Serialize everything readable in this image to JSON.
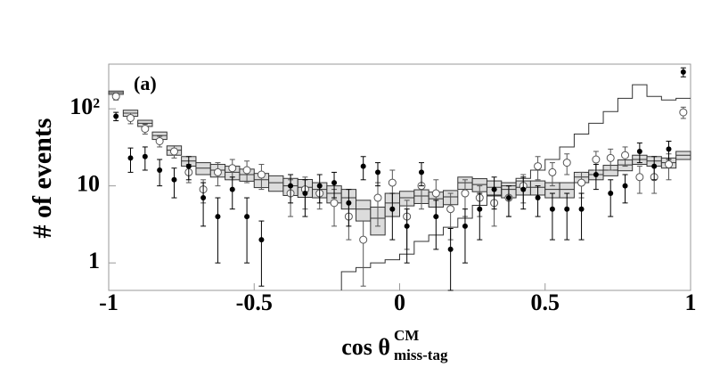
{
  "chart_data": {
    "type": "histogram",
    "panel_label": "(a)",
    "ylabel": "# of events",
    "xlabel": {
      "main": "cos θ",
      "sup": "CM",
      "sub": "miss-tag"
    },
    "log_y": true,
    "xlim": [
      -1,
      1
    ],
    "ylim": [
      0.44,
      380
    ],
    "xticks": [
      -1,
      -0.5,
      0,
      0.5,
      1
    ],
    "yticks": [
      1,
      10,
      {
        "value": 100,
        "label": "10²"
      }
    ],
    "bins": [
      -1,
      -0.95,
      -0.9,
      -0.85,
      -0.8,
      -0.75,
      -0.7,
      -0.65,
      -0.6,
      -0.55,
      -0.5,
      -0.45,
      -0.4,
      -0.35,
      -0.3,
      -0.25,
      -0.2,
      -0.15,
      -0.1,
      -0.05,
      0,
      0.05,
      0.1,
      0.15,
      0.2,
      0.25,
      0.3,
      0.35,
      0.4,
      0.45,
      0.5,
      0.55,
      0.6,
      0.65,
      0.7,
      0.75,
      0.8,
      0.85,
      0.9,
      0.95,
      1
    ],
    "series": [
      {
        "style": "box",
        "color": "#dcdcdc",
        "values": [
          162,
          88,
          65,
          45,
          29,
          21,
          17,
          16,
          15,
          14,
          12,
          11,
          10,
          9.6,
          9,
          8,
          7,
          5,
          3.8,
          6,
          7,
          7.4,
          6.8,
          7.2,
          11,
          10.4,
          9.6,
          9,
          9.6,
          9.6,
          9,
          9,
          13,
          14,
          16,
          18.7,
          22,
          21,
          20,
          25
        ],
        "errors": [
          8,
          8,
          6,
          5,
          4,
          3,
          3,
          3,
          3,
          2.5,
          2.5,
          2.5,
          2.5,
          2.5,
          2,
          2,
          2,
          1.5,
          1.5,
          2,
          1.5,
          1.5,
          1.5,
          1.5,
          2,
          2,
          2,
          2,
          2,
          2,
          2,
          2,
          2,
          2,
          2.5,
          3,
          3,
          3,
          3,
          3
        ]
      },
      {
        "style": "step",
        "color": "#333333",
        "values": [
          null,
          null,
          null,
          null,
          null,
          null,
          null,
          null,
          null,
          null,
          null,
          null,
          null,
          null,
          null,
          null,
          0.77,
          0.87,
          1.0,
          1.1,
          1.3,
          1.9,
          2.3,
          2.9,
          3.8,
          5.6,
          7.4,
          10,
          12.5,
          16,
          22,
          32,
          47,
          65,
          92,
          137,
          205,
          145,
          130,
          137
        ]
      },
      {
        "style": "open-circle",
        "color": "#555555",
        "values": [
          145,
          76,
          55,
          38,
          28,
          15,
          9,
          15,
          17,
          16,
          14,
          null,
          8,
          9,
          8,
          6,
          4,
          2,
          7,
          11,
          4,
          10,
          8,
          5,
          8,
          7,
          6,
          7,
          10,
          18,
          15,
          20,
          11,
          22,
          23,
          25,
          13,
          13,
          19,
          90
        ],
        "errors": [
          15,
          12,
          8,
          6,
          5,
          4,
          3,
          5,
          5,
          5,
          5,
          null,
          4,
          4,
          3,
          3,
          2,
          1.5,
          4,
          5,
          2.5,
          5,
          4,
          3,
          4,
          3,
          3,
          3,
          4,
          6,
          5,
          6,
          4,
          6,
          7,
          7,
          5,
          5,
          7,
          15
        ]
      },
      {
        "style": "filled-circle",
        "color": "#000000",
        "values": [
          80,
          23,
          24,
          16,
          12,
          18,
          7,
          4,
          9,
          4,
          2,
          null,
          10,
          8,
          10,
          11,
          6,
          18,
          15,
          5,
          3,
          15,
          4,
          1.5,
          3,
          5,
          9,
          7,
          9,
          7,
          5,
          5,
          5,
          14,
          8,
          10,
          28,
          18,
          30,
          300
        ],
        "errors": [
          10,
          8,
          8,
          6,
          5,
          6,
          4,
          3,
          4,
          3,
          1.5,
          null,
          4,
          4,
          4,
          4,
          3,
          6,
          5,
          3,
          2,
          5,
          2.5,
          1.3,
          2,
          3,
          4,
          3,
          4,
          3,
          3,
          3,
          3,
          5,
          4,
          4,
          8,
          6,
          8,
          40
        ]
      }
    ]
  }
}
